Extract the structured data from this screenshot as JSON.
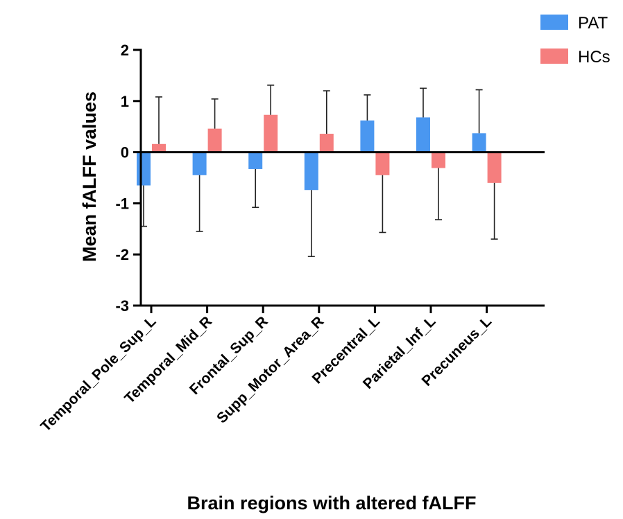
{
  "chart_data": {
    "type": "bar",
    "xlabel": "Brain regions with altered fALFF",
    "ylabel": "Mean fALFF values",
    "ylim": [
      -3,
      2
    ],
    "yticks": [
      2,
      1,
      0,
      -1,
      -2,
      -3
    ],
    "legend_position": "top-right",
    "categories": [
      "Temporal_Pole_Sup_L",
      "Temporal_Mid_R",
      "Frontal_Sup_R",
      "Supp_Motor_Area_R",
      "Precentral_L",
      "Parietal_Inf_L",
      "Precuneus_L"
    ],
    "series": [
      {
        "name": "PAT",
        "color": "#4a97f0",
        "values": [
          -0.65,
          -0.45,
          -0.33,
          -0.74,
          0.62,
          0.68,
          0.37
        ],
        "error": [
          0.8,
          1.1,
          0.75,
          1.3,
          0.5,
          0.57,
          0.85
        ]
      },
      {
        "name": "HCs",
        "color": "#f57e7e",
        "values": [
          0.16,
          0.46,
          0.73,
          0.36,
          -0.45,
          -0.31,
          -0.6
        ],
        "error": [
          0.92,
          0.58,
          0.58,
          0.84,
          1.12,
          1.01,
          1.1
        ]
      }
    ]
  }
}
